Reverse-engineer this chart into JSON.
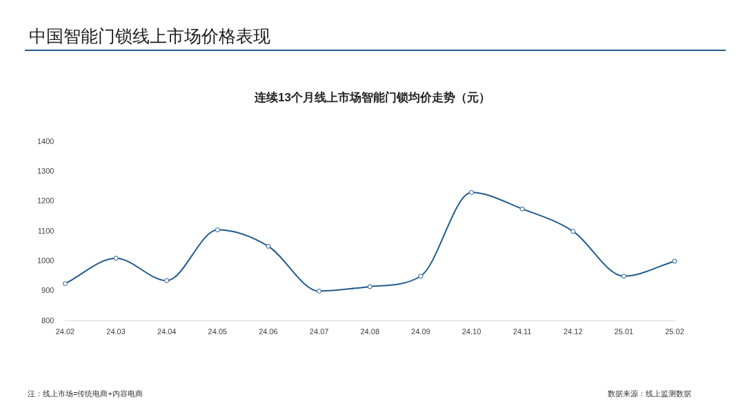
{
  "chart_data": {
    "type": "line",
    "title": "中国智能门锁线上市场价格表现",
    "subtitle": "连续13个月线上市场智能门锁均价走势（元）",
    "categories": [
      "24.02",
      "24.03",
      "24.04",
      "24.05",
      "24.06",
      "24.07",
      "24.08",
      "24.09",
      "24.10",
      "24.11",
      "24.12",
      "25.01",
      "25.02"
    ],
    "series": [
      {
        "color": "#1f5a8f",
        "values": [
          925,
          1010,
          935,
          1105,
          1050,
          900,
          915,
          950,
          1230,
          1175,
          1100,
          950,
          1000
        ]
      }
    ],
    "ylim": [
      800,
      1400
    ],
    "yticks": [
      800,
      900,
      1000,
      1100,
      1200,
      1300,
      1400
    ],
    "grid": false,
    "legend": false,
    "marker": "circle",
    "line_style": "solid",
    "annotations": [
      "注：线上市场=传统电商+内容电商",
      "数据来源：线上监测数据"
    ]
  }
}
